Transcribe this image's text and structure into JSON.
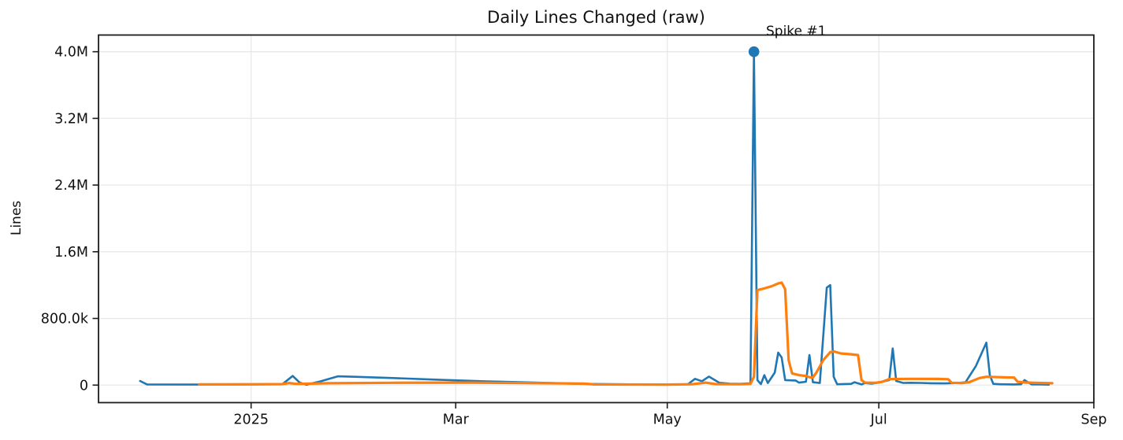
{
  "chart_data": {
    "type": "line",
    "title": "Daily Lines Changed (raw)",
    "xlabel": "",
    "ylabel": "Lines",
    "grid": true,
    "legend": null,
    "x_range": [
      "2024-11-18",
      "2025-09-01"
    ],
    "y_range": [
      -210000,
      4200000
    ],
    "x_ticks": [
      {
        "date": "2025-01-01",
        "label": "2025"
      },
      {
        "date": "2025-03-01",
        "label": "Mar"
      },
      {
        "date": "2025-05-01",
        "label": "May"
      },
      {
        "date": "2025-07-01",
        "label": "Jul"
      },
      {
        "date": "2025-09-01",
        "label": "Sep"
      }
    ],
    "y_ticks": [
      {
        "value": 0,
        "label": "0"
      },
      {
        "value": 800000,
        "label": "800.0k"
      },
      {
        "value": 1600000,
        "label": "1.6M"
      },
      {
        "value": 2400000,
        "label": "2.4M"
      },
      {
        "value": 3200000,
        "label": "3.2M"
      },
      {
        "value": 4000000,
        "label": "4.0M"
      }
    ],
    "series": [
      {
        "id": "blue-series",
        "color": "#1f77b4",
        "line_width": 2.6,
        "points": [
          [
            "2024-11-30",
            50000
          ],
          [
            "2024-12-02",
            8000
          ],
          [
            "2024-12-20",
            6000
          ],
          [
            "2025-01-01",
            7000
          ],
          [
            "2025-01-10",
            10000
          ],
          [
            "2025-01-13",
            110000
          ],
          [
            "2025-01-15",
            30000
          ],
          [
            "2025-01-17",
            5000
          ],
          [
            "2025-01-21",
            45000
          ],
          [
            "2025-01-26",
            105000
          ],
          [
            "2025-01-31",
            100000
          ],
          [
            "2025-02-11",
            85000
          ],
          [
            "2025-02-24",
            65000
          ],
          [
            "2025-03-10",
            45000
          ],
          [
            "2025-03-24",
            30000
          ],
          [
            "2025-04-06",
            15000
          ],
          [
            "2025-04-20",
            9000
          ],
          [
            "2025-05-04",
            7000
          ],
          [
            "2025-05-07",
            12000
          ],
          [
            "2025-05-09",
            75000
          ],
          [
            "2025-05-11",
            47000
          ],
          [
            "2025-05-13",
            103000
          ],
          [
            "2025-05-16",
            28000
          ],
          [
            "2025-05-19",
            18000
          ],
          [
            "2025-05-22",
            15000
          ],
          [
            "2025-05-25",
            22000
          ],
          [
            "2025-05-26",
            4000000
          ],
          [
            "2025-05-27",
            60000
          ],
          [
            "2025-05-28",
            12000
          ],
          [
            "2025-05-29",
            120000
          ],
          [
            "2025-05-30",
            25000
          ],
          [
            "2025-06-01",
            150000
          ],
          [
            "2025-06-02",
            390000
          ],
          [
            "2025-06-03",
            330000
          ],
          [
            "2025-06-04",
            60000
          ],
          [
            "2025-06-07",
            55000
          ],
          [
            "2025-06-08",
            30000
          ],
          [
            "2025-06-10",
            40000
          ],
          [
            "2025-06-11",
            360000
          ],
          [
            "2025-06-12",
            35000
          ],
          [
            "2025-06-14",
            25000
          ],
          [
            "2025-06-16",
            1170000
          ],
          [
            "2025-06-17",
            1200000
          ],
          [
            "2025-06-18",
            100000
          ],
          [
            "2025-06-19",
            10000
          ],
          [
            "2025-06-23",
            15000
          ],
          [
            "2025-06-24",
            35000
          ],
          [
            "2025-06-26",
            8000
          ],
          [
            "2025-06-27",
            25000
          ],
          [
            "2025-06-29",
            18000
          ],
          [
            "2025-07-01",
            30000
          ],
          [
            "2025-07-04",
            60000
          ],
          [
            "2025-07-05",
            440000
          ],
          [
            "2025-07-06",
            50000
          ],
          [
            "2025-07-08",
            26000
          ],
          [
            "2025-07-10",
            28000
          ],
          [
            "2025-07-13",
            26000
          ],
          [
            "2025-07-16",
            22000
          ],
          [
            "2025-07-20",
            20000
          ],
          [
            "2025-07-24",
            25000
          ],
          [
            "2025-07-26",
            35000
          ],
          [
            "2025-07-29",
            230000
          ],
          [
            "2025-08-01",
            510000
          ],
          [
            "2025-08-02",
            120000
          ],
          [
            "2025-08-03",
            15000
          ],
          [
            "2025-08-05",
            10000
          ],
          [
            "2025-08-09",
            8000
          ],
          [
            "2025-08-11",
            10000
          ],
          [
            "2025-08-12",
            60000
          ],
          [
            "2025-08-14",
            9000
          ],
          [
            "2025-08-17",
            7000
          ],
          [
            "2025-08-19",
            5000
          ]
        ]
      },
      {
        "id": "orange-series",
        "color": "#ff7f0e",
        "line_width": 3.2,
        "points": [
          [
            "2024-12-17",
            8000
          ],
          [
            "2025-01-01",
            10000
          ],
          [
            "2025-01-10",
            12000
          ],
          [
            "2025-01-12",
            25000
          ],
          [
            "2025-01-14",
            15000
          ],
          [
            "2025-01-23",
            22000
          ],
          [
            "2025-02-11",
            28000
          ],
          [
            "2025-03-05",
            30000
          ],
          [
            "2025-03-28",
            22000
          ],
          [
            "2025-04-07",
            18000
          ],
          [
            "2025-04-10",
            8000
          ],
          [
            "2025-05-01",
            6000
          ],
          [
            "2025-05-08",
            10000
          ],
          [
            "2025-05-12",
            30000
          ],
          [
            "2025-05-15",
            12000
          ],
          [
            "2025-05-22",
            10000
          ],
          [
            "2025-05-25",
            15000
          ],
          [
            "2025-05-26",
            100000
          ],
          [
            "2025-05-27",
            1140000
          ],
          [
            "2025-05-29",
            1160000
          ],
          [
            "2025-05-31",
            1185000
          ],
          [
            "2025-06-02",
            1220000
          ],
          [
            "2025-06-03",
            1230000
          ],
          [
            "2025-06-04",
            1150000
          ],
          [
            "2025-06-05",
            300000
          ],
          [
            "2025-06-06",
            140000
          ],
          [
            "2025-06-08",
            120000
          ],
          [
            "2025-06-10",
            110000
          ],
          [
            "2025-06-11",
            95000
          ],
          [
            "2025-06-12",
            90000
          ],
          [
            "2025-06-13",
            150000
          ],
          [
            "2025-06-15",
            300000
          ],
          [
            "2025-06-17",
            395000
          ],
          [
            "2025-06-18",
            405000
          ],
          [
            "2025-06-20",
            380000
          ],
          [
            "2025-06-23",
            370000
          ],
          [
            "2025-06-25",
            360000
          ],
          [
            "2025-06-26",
            60000
          ],
          [
            "2025-06-27",
            30000
          ],
          [
            "2025-06-30",
            28000
          ],
          [
            "2025-07-02",
            40000
          ],
          [
            "2025-07-04",
            72000
          ],
          [
            "2025-07-10",
            75000
          ],
          [
            "2025-07-18",
            74000
          ],
          [
            "2025-07-21",
            70000
          ],
          [
            "2025-07-22",
            28000
          ],
          [
            "2025-07-25",
            25000
          ],
          [
            "2025-07-27",
            35000
          ],
          [
            "2025-07-30",
            85000
          ],
          [
            "2025-08-01",
            100000
          ],
          [
            "2025-08-05",
            95000
          ],
          [
            "2025-08-09",
            90000
          ],
          [
            "2025-08-10",
            40000
          ],
          [
            "2025-08-12",
            32000
          ],
          [
            "2025-08-15",
            27000
          ],
          [
            "2025-08-20",
            22000
          ]
        ]
      }
    ],
    "annotations": [
      {
        "text": "Spike #1",
        "x": "2025-05-26",
        "y": 4000000,
        "marker": true,
        "marker_color": "#1f77b4"
      }
    ],
    "style": {
      "grid_color": "#e8e8e8",
      "spine_color": "#1c1c1c",
      "background": "#ffffff"
    }
  }
}
